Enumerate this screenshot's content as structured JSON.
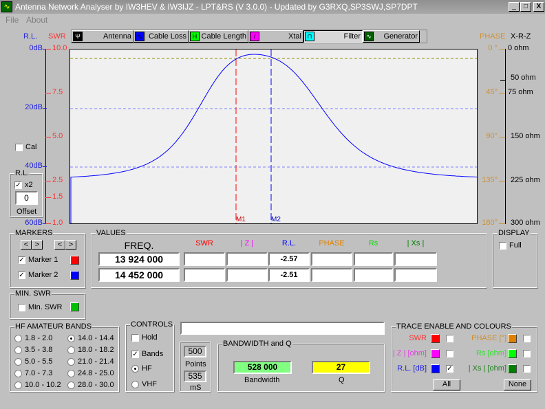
{
  "window": {
    "title": "Antenna Network Analyser by IW3HEV & IW3IJZ - LPT&RS (V 3.0.0) - Updated by G3RXQ,SP3SWJ,SP7DPT",
    "min": "_",
    "max": "□",
    "close": "X"
  },
  "menu": [
    "File",
    "About"
  ],
  "modes": [
    {
      "label": "Antenna",
      "icon": "antenna-icon",
      "color": "#000000"
    },
    {
      "label": "Cable Loss",
      "icon": "cable-loss-icon",
      "color": "#0000ff"
    },
    {
      "label": "Cable Length",
      "icon": "cable-length-icon",
      "color": "#00ff00"
    },
    {
      "label": "Xtal",
      "icon": "xtal-icon",
      "color": "#ff00ff"
    },
    {
      "label": "Filter",
      "icon": "filter-icon",
      "color": "#00ffff",
      "active": true
    },
    {
      "label": "Generator",
      "icon": "generator-icon",
      "color": "#006000"
    }
  ],
  "axes": {
    "rl_title": "R.L.",
    "swr_title": "SWR",
    "phase_title": "PHASE",
    "xrz_title": "X-R-Z",
    "rl_ticks": [
      "0dB",
      "20dB",
      "40dB",
      "60dB"
    ],
    "swr_ticks": [
      "10.0",
      "7.5",
      "5.0",
      "2.5",
      "1.5",
      "1.0"
    ],
    "phase_ticks": [
      "0 °",
      "45°",
      "90°",
      "135°",
      "180°"
    ],
    "ohm_ticks": [
      "0 ohm",
      "50 ohm",
      "75 ohm",
      "150 ohm",
      "225 ohm",
      "300 ohm"
    ]
  },
  "plot": {
    "marker1": "M1",
    "marker2": "M2",
    "trace_color": "#0000ff"
  },
  "cal": {
    "label": "Cal",
    "checked": false
  },
  "rl_box": {
    "title": "R.L.",
    "x2_label": "x2",
    "x2_checked": true,
    "offset": "0",
    "offset_label": "Offset"
  },
  "markers": {
    "title": "MARKERS",
    "prev": "<",
    "next": ">",
    "m1": "Marker 1",
    "m2": "Marker 2",
    "m1_color": "#ff0000",
    "m2_color": "#0000ff"
  },
  "values": {
    "title": "VALUES",
    "headers": [
      "FREQ.",
      "SWR",
      "| Z |",
      "R.L.",
      "PHASE",
      "Rs",
      "| Xs |"
    ],
    "header_colors": [
      "#000000",
      "#ff0000",
      "#ff00ff",
      "#0000ff",
      "#e08000",
      "#00e000",
      "#008000"
    ],
    "rows": [
      [
        "13 924 000",
        "",
        "",
        "-2.57",
        "",
        "",
        ""
      ],
      [
        "14 452 000",
        "",
        "",
        "-2.51",
        "",
        "",
        ""
      ]
    ]
  },
  "display": {
    "title": "DISPLAY",
    "full": "Full"
  },
  "min_swr": {
    "title": "MIN. SWR",
    "label": "Min. SWR",
    "color": "#00c000"
  },
  "bands": {
    "title": "HF AMATEUR BANDS",
    "items": [
      "1.8 - 2.0",
      "3.5 - 3.8",
      "5.0 - 5.5",
      "7.0 - 7.3",
      "10.0 - 10.2",
      "14.0 - 14.4",
      "18.0 - 18.2",
      "21.0 - 21.4",
      "24.8 - 25.0",
      "28.0 - 30.0"
    ],
    "selected": "14.0 - 14.4"
  },
  "controls": {
    "title": "CONTROLS",
    "hold": "Hold",
    "bands": "Bands",
    "hf": "HF",
    "vhf": "VHF"
  },
  "points": {
    "value": "500",
    "label": "Points",
    "ms": "535",
    "ms_label": "mS"
  },
  "status": "",
  "bw": {
    "title": "BANDWIDTH and Q",
    "bandwidth": "528 000",
    "bandwidth_label": "Bandwidth",
    "q": "27",
    "q_label": "Q"
  },
  "trace": {
    "title": "TRACE ENABLE AND COLOURS",
    "items": [
      {
        "label": "SWR",
        "color": "#ff0000",
        "text_color": "#ff3030",
        "checked": false
      },
      {
        "label": "| Z | [ohm]",
        "color": "#ff00ff",
        "text_color": "#e040e0",
        "checked": false
      },
      {
        "label": "R.L. [dB]",
        "color": "#0000ff",
        "text_color": "#2020e0",
        "checked": true
      },
      {
        "label": "PHASE [°]",
        "color": "#e08000",
        "text_color": "#d09030",
        "checked": false
      },
      {
        "label": "Rs [ohm]",
        "color": "#00ff00",
        "text_color": "#30e030",
        "checked": false
      },
      {
        "label": "| Xs | [ohm]",
        "color": "#008000",
        "text_color": "#208020",
        "checked": false
      }
    ],
    "all": "All",
    "none": "None"
  }
}
